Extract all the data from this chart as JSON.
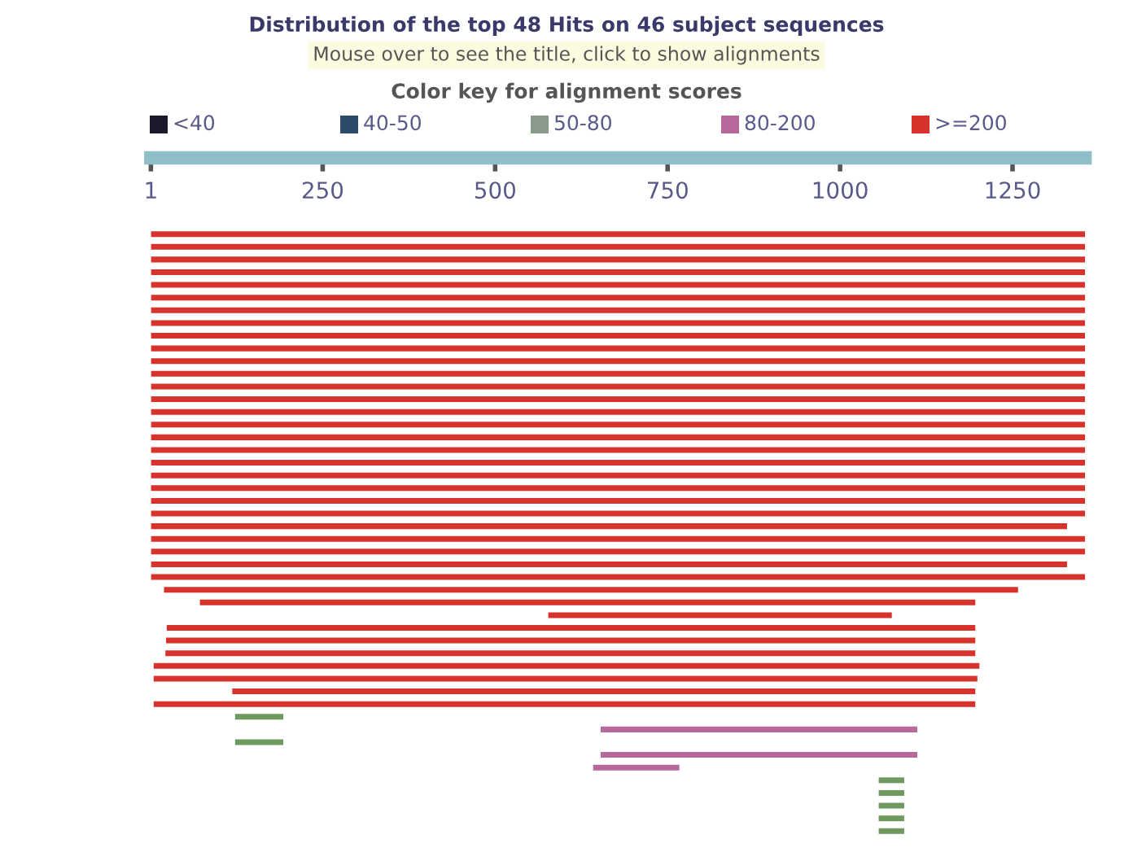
{
  "chart_data": {
    "type": "bar",
    "orientation": "horizontal",
    "title": "Distribution of the top 48 Hits on 46 subject sequences",
    "subtitle": "Mouse over to see the title, click to show alignments",
    "annotations": [
      "Color key for alignment scores",
      "<40",
      "40-50",
      "50-80",
      "80-200",
      ">=200"
    ],
    "categories": [
      null,
      null,
      null,
      null,
      null,
      null,
      null,
      null,
      null,
      null,
      null,
      null,
      null,
      null,
      null,
      null,
      null,
      null,
      null,
      null,
      null,
      null,
      null,
      null,
      null,
      null,
      null,
      null,
      null,
      null,
      null,
      null,
      null,
      null,
      null,
      null,
      null,
      null,
      null,
      null,
      null,
      null,
      null,
      null,
      null,
      null,
      null,
      null
    ],
    "xlim": [
      1,
      1355
    ],
    "xticks": [
      1,
      250,
      500,
      750,
      1000,
      1250
    ],
    "base": [
      1,
      1,
      1,
      1,
      1,
      1,
      1,
      1,
      1,
      1,
      1,
      1,
      1,
      1,
      1,
      1,
      1,
      1,
      1,
      1,
      1,
      1,
      1,
      1,
      1,
      1,
      1,
      1,
      20,
      72,
      577,
      24,
      23,
      22,
      5,
      5,
      119,
      5,
      123,
      653,
      123,
      653,
      642,
      1056,
      1056,
      1056,
      1056,
      1056
    ],
    "values": [
      1354,
      1354,
      1354,
      1354,
      1354,
      1354,
      1354,
      1354,
      1354,
      1354,
      1354,
      1354,
      1354,
      1354,
      1354,
      1354,
      1354,
      1354,
      1354,
      1354,
      1354,
      1354,
      1354,
      1328,
      1361,
      1361,
      1328,
      1361,
      1238,
      1124,
      498,
      1172,
      1173,
      1174,
      1197,
      1194,
      1077,
      1191,
      70,
      459,
      70,
      459,
      125,
      37,
      37,
      37,
      37,
      37
    ],
    "colors": [
      "#d8322c",
      "#d8322c",
      "#d8322c",
      "#d8322c",
      "#d8322c",
      "#d8322c",
      "#d8322c",
      "#d8322c",
      "#d8322c",
      "#d8322c",
      "#d8322c",
      "#d8322c",
      "#d8322c",
      "#d8322c",
      "#d8322c",
      "#d8322c",
      "#d8322c",
      "#d8322c",
      "#d8322c",
      "#d8322c",
      "#d8322c",
      "#d8322c",
      "#d8322c",
      "#d8322c",
      "#d8322c",
      "#d8322c",
      "#d8322c",
      "#d8322c",
      "#d8322c",
      "#d8322c",
      "#d8322c",
      "#d8322c",
      "#d8322c",
      "#d8322c",
      "#d8322c",
      "#d8322c",
      "#d8322c",
      "#d8322c",
      "#6f9a5f",
      "#b8689a",
      "#6f9a5f",
      "#b8689a",
      "#b8689a",
      "#6f9a5f",
      "#6f9a5f",
      "#6f9a5f",
      "#6f9a5f",
      "#6f9a5f"
    ]
  }
}
